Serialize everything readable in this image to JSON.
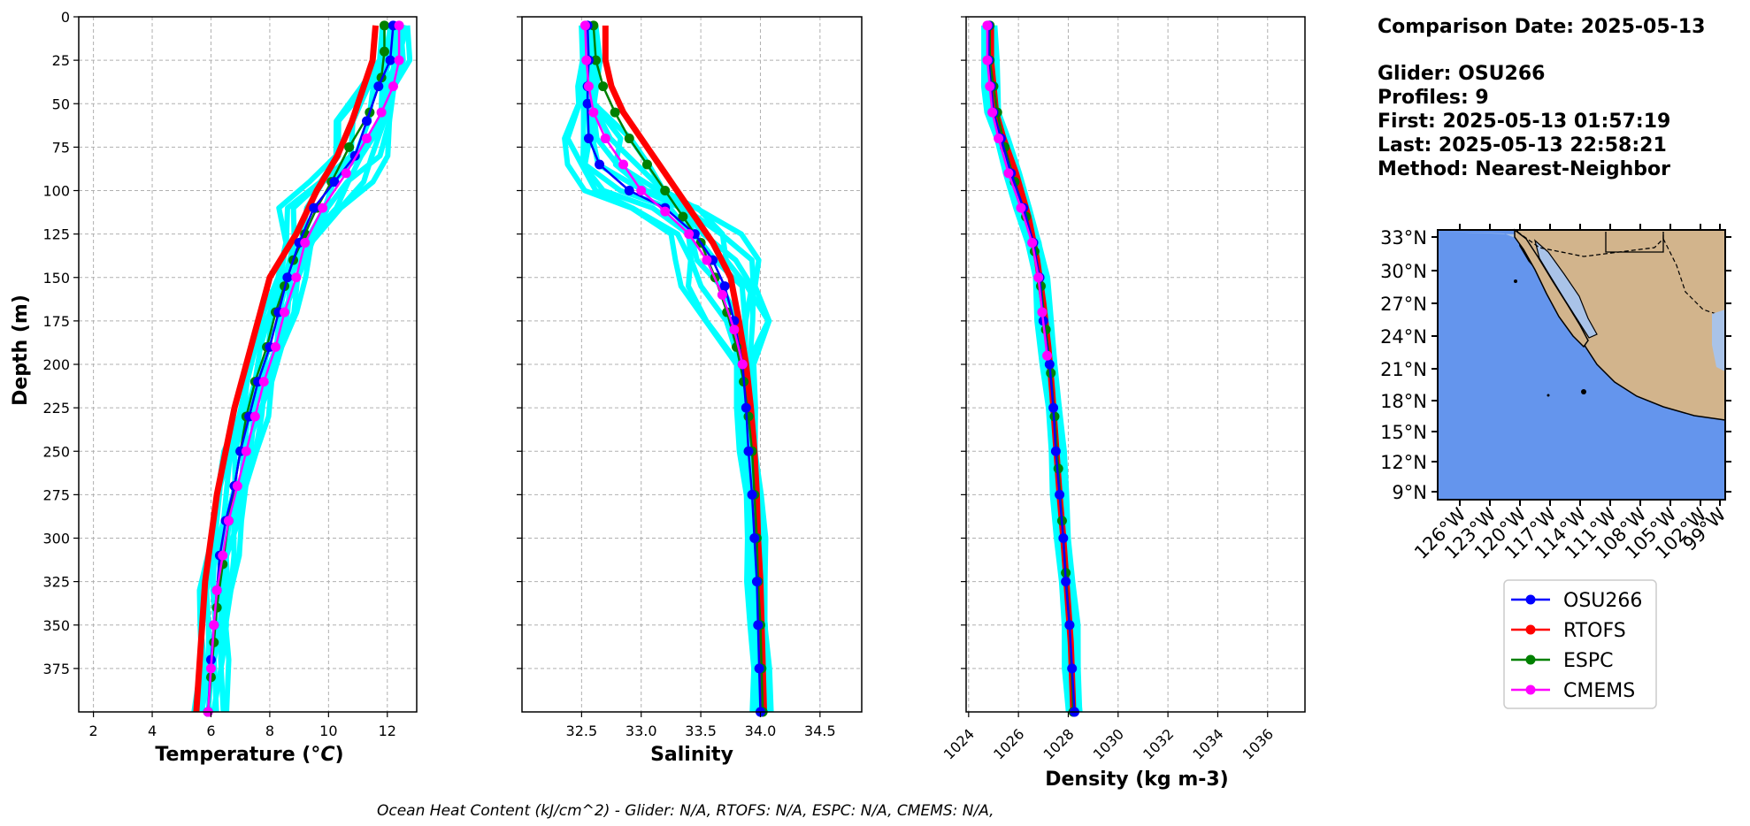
{
  "info": {
    "comparison": "Comparison Date: 2025-05-13",
    "glider": "Glider: OSU266",
    "profiles": "Profiles: 9",
    "first": "First: 2025-05-13 01:57:19",
    "last": "Last: 2025-05-13 22:58:21",
    "method": "Method: Nearest-Neighbor"
  },
  "footer": "Ocean Heat Content (kJ/cm^2) - Glider: N/A,  RTOFS: N/A,  ESPC: N/A,  CMEMS: N/A,",
  "colors": {
    "osu266": "#0000ff",
    "rtofs": "#ff0000",
    "espc": "#008000",
    "cmems": "#ff00ff",
    "profiles": "#00ffff",
    "ocean": "#6495ed",
    "shelf": "#a9c3e8",
    "land": "#d2b48c"
  },
  "map": {
    "lat_labels": [
      "33°N",
      "30°N",
      "27°N",
      "24°N",
      "21°N",
      "18°N",
      "15°N",
      "12°N",
      "9°N"
    ],
    "lon_labels": [
      "126°W",
      "123°W",
      "120°W",
      "117°W",
      "114°W",
      "111°W",
      "108°W",
      "105°W",
      "102°W",
      "99°W"
    ]
  },
  "chart_data": [
    {
      "type": "line",
      "ylabel": "Depth (m)",
      "xlabel": "Temperature (ᴼC)",
      "xticks": [
        "2",
        "4",
        "6",
        "8",
        "10",
        "12"
      ],
      "xlim": [
        1.5,
        13
      ],
      "yticks": [
        "0",
        "25",
        "50",
        "75",
        "100",
        "125",
        "150",
        "175",
        "200",
        "225",
        "250",
        "275",
        "300",
        "325",
        "350",
        "375"
      ],
      "ylim": [
        400,
        0
      ],
      "grid": true,
      "series": [
        {
          "name": "OSU266",
          "marker": "o",
          "points": [
            [
              12.2,
              5
            ],
            [
              12.1,
              25
            ],
            [
              11.7,
              40
            ],
            [
              11.3,
              60
            ],
            [
              10.9,
              80
            ],
            [
              10.2,
              95
            ],
            [
              9.5,
              110
            ],
            [
              9.0,
              130
            ],
            [
              8.6,
              150
            ],
            [
              8.3,
              170
            ],
            [
              8.0,
              190
            ],
            [
              7.6,
              210
            ],
            [
              7.3,
              230
            ],
            [
              7.0,
              250
            ],
            [
              6.8,
              270
            ],
            [
              6.5,
              290
            ],
            [
              6.3,
              310
            ],
            [
              6.2,
              330
            ],
            [
              6.1,
              350
            ],
            [
              6.0,
              370
            ],
            [
              5.9,
              400
            ]
          ]
        },
        {
          "name": "RTOFS",
          "marker": "o",
          "points": [
            [
              11.6,
              5
            ],
            [
              11.5,
              25
            ],
            [
              11.2,
              40
            ],
            [
              10.8,
              60
            ],
            [
              10.3,
              80
            ],
            [
              9.6,
              100
            ],
            [
              8.9,
              125
            ],
            [
              8.0,
              150
            ],
            [
              7.6,
              175
            ],
            [
              7.2,
              200
            ],
            [
              6.8,
              225
            ],
            [
              6.5,
              250
            ],
            [
              6.2,
              275
            ],
            [
              6.0,
              300
            ],
            [
              5.8,
              325
            ],
            [
              5.7,
              350
            ],
            [
              5.6,
              375
            ],
            [
              5.5,
              400
            ]
          ]
        },
        {
          "name": "ESPC",
          "marker": "o",
          "points": [
            [
              11.9,
              5
            ],
            [
              11.9,
              20
            ],
            [
              11.8,
              35
            ],
            [
              11.4,
              55
            ],
            [
              10.7,
              75
            ],
            [
              10.1,
              95
            ],
            [
              9.6,
              110
            ],
            [
              9.2,
              125
            ],
            [
              8.8,
              140
            ],
            [
              8.5,
              155
            ],
            [
              8.2,
              170
            ],
            [
              7.9,
              190
            ],
            [
              7.5,
              210
            ],
            [
              7.2,
              230
            ],
            [
              7.0,
              250
            ],
            [
              6.8,
              270
            ],
            [
              6.6,
              290
            ],
            [
              6.4,
              315
            ],
            [
              6.2,
              340
            ],
            [
              6.1,
              360
            ],
            [
              6.0,
              380
            ],
            [
              5.9,
              400
            ]
          ]
        },
        {
          "name": "CMEMS",
          "marker": "o",
          "points": [
            [
              12.4,
              5
            ],
            [
              12.4,
              25
            ],
            [
              12.2,
              40
            ],
            [
              11.8,
              55
            ],
            [
              11.3,
              70
            ],
            [
              10.6,
              90
            ],
            [
              9.8,
              110
            ],
            [
              9.2,
              130
            ],
            [
              8.9,
              150
            ],
            [
              8.5,
              170
            ],
            [
              8.2,
              190
            ],
            [
              7.8,
              210
            ],
            [
              7.5,
              230
            ],
            [
              7.2,
              250
            ],
            [
              6.9,
              270
            ],
            [
              6.6,
              290
            ],
            [
              6.4,
              310
            ],
            [
              6.2,
              330
            ],
            [
              6.1,
              350
            ],
            [
              6.0,
              375
            ],
            [
              5.9,
              400
            ]
          ]
        }
      ]
    },
    {
      "type": "line",
      "xlabel": "Salinity",
      "xticks": [
        "32.5",
        "33.0",
        "33.5",
        "34.0",
        "34.5"
      ],
      "xlim": [
        32.0,
        34.85
      ],
      "ylim": [
        400,
        0
      ],
      "grid": true,
      "series": [
        {
          "name": "OSU266",
          "marker": "o",
          "points": [
            [
              32.55,
              5
            ],
            [
              32.56,
              25
            ],
            [
              32.55,
              40
            ],
            [
              32.55,
              50
            ],
            [
              32.56,
              70
            ],
            [
              32.65,
              85
            ],
            [
              32.9,
              100
            ],
            [
              33.2,
              110
            ],
            [
              33.45,
              125
            ],
            [
              33.6,
              140
            ],
            [
              33.7,
              155
            ],
            [
              33.78,
              175
            ],
            [
              33.85,
              200
            ],
            [
              33.88,
              225
            ],
            [
              33.9,
              250
            ],
            [
              33.93,
              275
            ],
            [
              33.95,
              300
            ],
            [
              33.97,
              325
            ],
            [
              33.98,
              350
            ],
            [
              33.99,
              375
            ],
            [
              34.0,
              400
            ]
          ]
        },
        {
          "name": "RTOFS",
          "marker": "o",
          "points": [
            [
              32.7,
              5
            ],
            [
              32.7,
              25
            ],
            [
              32.75,
              40
            ],
            [
              32.85,
              55
            ],
            [
              33.0,
              70
            ],
            [
              33.15,
              85
            ],
            [
              33.3,
              100
            ],
            [
              33.45,
              115
            ],
            [
              33.6,
              130
            ],
            [
              33.75,
              150
            ],
            [
              33.82,
              175
            ],
            [
              33.88,
              200
            ],
            [
              33.92,
              225
            ],
            [
              33.95,
              250
            ],
            [
              33.97,
              275
            ],
            [
              33.98,
              300
            ],
            [
              34.0,
              325
            ],
            [
              34.01,
              350
            ],
            [
              34.02,
              375
            ],
            [
              34.03,
              400
            ]
          ]
        },
        {
          "name": "ESPC",
          "marker": "o",
          "points": [
            [
              32.6,
              5
            ],
            [
              32.62,
              25
            ],
            [
              32.68,
              40
            ],
            [
              32.78,
              55
            ],
            [
              32.9,
              70
            ],
            [
              33.05,
              85
            ],
            [
              33.2,
              100
            ],
            [
              33.35,
              115
            ],
            [
              33.5,
              130
            ],
            [
              33.62,
              150
            ],
            [
              33.72,
              170
            ],
            [
              33.8,
              190
            ],
            [
              33.86,
              210
            ],
            [
              33.9,
              230
            ],
            [
              33.93,
              250
            ],
            [
              33.95,
              275
            ],
            [
              33.97,
              300
            ],
            [
              33.98,
              325
            ],
            [
              34.0,
              350
            ],
            [
              34.01,
              375
            ],
            [
              34.02,
              400
            ]
          ]
        },
        {
          "name": "CMEMS",
          "marker": "o",
          "points": [
            [
              32.53,
              5
            ],
            [
              32.54,
              25
            ],
            [
              32.56,
              40
            ],
            [
              32.6,
              55
            ],
            [
              32.7,
              70
            ],
            [
              32.85,
              85
            ],
            [
              33.0,
              100
            ],
            [
              33.2,
              112
            ],
            [
              33.4,
              125
            ],
            [
              33.55,
              140
            ],
            [
              33.68,
              160
            ],
            [
              33.78,
              180
            ],
            [
              33.85,
              200
            ]
          ]
        }
      ]
    },
    {
      "type": "line",
      "xlabel": "Density (kg m-3)",
      "xticks": [
        "1024",
        "1026",
        "1028",
        "1030",
        "1032",
        "1034",
        "1036"
      ],
      "xlim": [
        1023.9,
        1037.5
      ],
      "ylim": [
        400,
        0
      ],
      "grid": true,
      "series": [
        {
          "name": "OSU266",
          "marker": "o",
          "points": [
            [
              1024.8,
              5
            ],
            [
              1024.8,
              25
            ],
            [
              1024.9,
              40
            ],
            [
              1025.0,
              55
            ],
            [
              1025.3,
              70
            ],
            [
              1025.7,
              90
            ],
            [
              1026.2,
              110
            ],
            [
              1026.6,
              130
            ],
            [
              1026.85,
              150
            ],
            [
              1027.0,
              175
            ],
            [
              1027.25,
              200
            ],
            [
              1027.4,
              225
            ],
            [
              1027.5,
              250
            ],
            [
              1027.65,
              275
            ],
            [
              1027.8,
              300
            ],
            [
              1027.9,
              325
            ],
            [
              1028.05,
              350
            ],
            [
              1028.15,
              375
            ],
            [
              1028.25,
              400
            ]
          ]
        },
        {
          "name": "RTOFS",
          "marker": "o",
          "points": [
            [
              1024.9,
              5
            ],
            [
              1024.9,
              25
            ],
            [
              1025.0,
              40
            ],
            [
              1025.1,
              55
            ],
            [
              1025.4,
              70
            ],
            [
              1025.9,
              90
            ],
            [
              1026.4,
              115
            ],
            [
              1026.75,
              140
            ],
            [
              1027.0,
              165
            ],
            [
              1027.2,
              190
            ],
            [
              1027.35,
              215
            ],
            [
              1027.5,
              245
            ],
            [
              1027.65,
              275
            ],
            [
              1027.8,
              300
            ],
            [
              1027.95,
              330
            ],
            [
              1028.1,
              360
            ],
            [
              1028.2,
              400
            ]
          ]
        },
        {
          "name": "ESPC",
          "marker": "o",
          "points": [
            [
              1024.85,
              5
            ],
            [
              1024.85,
              25
            ],
            [
              1025.0,
              40
            ],
            [
              1025.15,
              55
            ],
            [
              1025.45,
              75
            ],
            [
              1025.85,
              95
            ],
            [
              1026.3,
              115
            ],
            [
              1026.65,
              135
            ],
            [
              1026.9,
              155
            ],
            [
              1027.1,
              180
            ],
            [
              1027.3,
              205
            ],
            [
              1027.45,
              230
            ],
            [
              1027.6,
              260
            ],
            [
              1027.75,
              290
            ],
            [
              1027.9,
              320
            ],
            [
              1028.05,
              350
            ],
            [
              1028.2,
              400
            ]
          ]
        },
        {
          "name": "CMEMS",
          "marker": "o",
          "points": [
            [
              1024.75,
              5
            ],
            [
              1024.75,
              25
            ],
            [
              1024.85,
              40
            ],
            [
              1024.95,
              55
            ],
            [
              1025.2,
              70
            ],
            [
              1025.6,
              90
            ],
            [
              1026.1,
              110
            ],
            [
              1026.55,
              130
            ],
            [
              1026.8,
              150
            ],
            [
              1026.95,
              170
            ],
            [
              1027.15,
              195
            ]
          ]
        }
      ]
    }
  ],
  "legend": [
    {
      "label": "OSU266",
      "color": "#0000ff"
    },
    {
      "label": "RTOFS",
      "color": "#ff0000"
    },
    {
      "label": "ESPC",
      "color": "#008000"
    },
    {
      "label": "CMEMS",
      "color": "#ff00ff"
    }
  ]
}
